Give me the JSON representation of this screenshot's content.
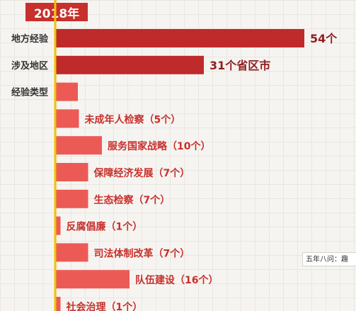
{
  "header": {
    "year": "2018年"
  },
  "caption": "五年八问：趣",
  "colors": {
    "dark_bar": "#bf2a2a",
    "light_bar": "#ec5a55",
    "axis": "#f2c200",
    "label": "#333333"
  },
  "chart_data": {
    "type": "bar",
    "orientation": "horizontal",
    "categories": [
      "地方经验",
      "涉及地区",
      "经验类型",
      "未成年人检察",
      "服务国家战略",
      "保障经济发展",
      "生态检察",
      "反腐倡廉",
      "司法体制改革",
      "队伍建设",
      "社会治理"
    ],
    "values": [
      54,
      31,
      null,
      5,
      10,
      7,
      7,
      1,
      7,
      16,
      1
    ],
    "data_labels": [
      "54个",
      "31个省区市",
      "",
      "未成年人检察（5个）",
      "服务国家战略（10个）",
      "保障经济发展（7个）",
      "生态检察（7个）",
      "反腐倡廉（1个）",
      "司法体制改革（7个）",
      "队伍建设（16个）",
      "社会治理（1个）"
    ],
    "left_labels": [
      "地方经验",
      "涉及地区",
      "经验类型",
      "",
      "",
      "",
      "",
      "",
      "",
      "",
      ""
    ],
    "bar_style": [
      "dark",
      "dark",
      "light",
      "light",
      "light",
      "light",
      "light",
      "light",
      "light",
      "light",
      "light"
    ],
    "grid": true
  }
}
